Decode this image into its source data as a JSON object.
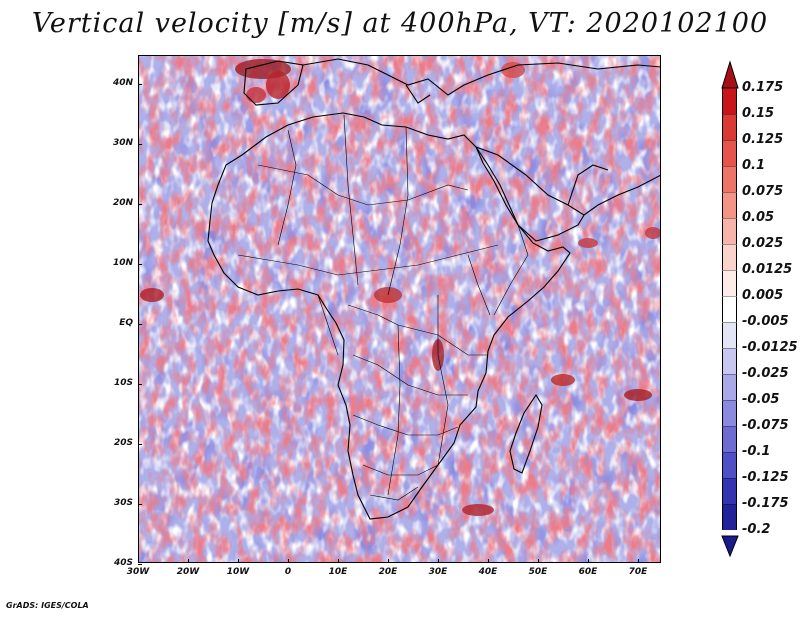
{
  "title": "Vertical velocity [m/s] at 400hPa, VT: 2020102100",
  "map": {
    "lat_ticks": [
      "40N",
      "30N",
      "20N",
      "10N",
      "EQ",
      "10S",
      "20S",
      "30S",
      "40S"
    ],
    "lon_ticks": [
      "30W",
      "20W",
      "10W",
      "0",
      "10E",
      "20E",
      "30E",
      "40E",
      "50E",
      "60E",
      "70E"
    ],
    "lon_range": [
      -30,
      75
    ],
    "lat_range": [
      -40,
      45
    ]
  },
  "colorbar": {
    "levels": [
      {
        "label": "0.175",
        "color": "#a50f15"
      },
      {
        "label": "0.15",
        "color": "#c8151b"
      },
      {
        "label": "0.125",
        "color": "#d93a34"
      },
      {
        "label": "0.1",
        "color": "#e5554c"
      },
      {
        "label": "0.075",
        "color": "#ee7468"
      },
      {
        "label": "0.05",
        "color": "#f39486"
      },
      {
        "label": "0.025",
        "color": "#f7b4a8"
      },
      {
        "label": "0.0125",
        "color": "#fad3ca"
      },
      {
        "label": "0.005",
        "color": "#fdece8"
      },
      {
        "label": "-0.005",
        "color": "#ffffff"
      },
      {
        "label": "-0.0125",
        "color": "#e4e4f7"
      },
      {
        "label": "-0.025",
        "color": "#c7c7f0"
      },
      {
        "label": "-0.05",
        "color": "#a9a9e8"
      },
      {
        "label": "-0.075",
        "color": "#8a8ade"
      },
      {
        "label": "-0.1",
        "color": "#6c6cd3"
      },
      {
        "label": "-0.125",
        "color": "#4f4fc6"
      },
      {
        "label": "-0.175",
        "color": "#3434b3"
      },
      {
        "label": "-0.2",
        "color": "#22229b"
      }
    ],
    "top_color": "#a50f15",
    "bottom_color": "#1a1a8c"
  },
  "footer": "GrADS: IGES/COLA"
}
